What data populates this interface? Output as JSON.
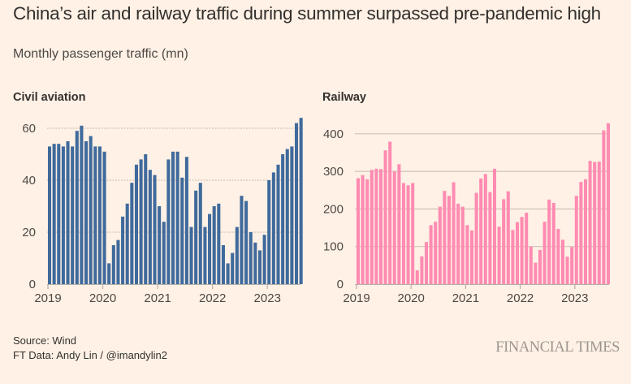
{
  "title": "China’s air and railway traffic during summer surpassed pre-pandemic high",
  "subtitle": "Monthly passenger traffic (mn)",
  "footer": {
    "source": "Source: Wind",
    "credit": "FT Data: Andy Lin / @imandylin2",
    "logo": "FINANCIAL TIMES"
  },
  "colors": {
    "background": "#fff1e5",
    "aviation_bar": "#3f6a9c",
    "railway_bar": "#ff8bb2",
    "gridline": "#cfc4ba",
    "axis": "#b8aea5"
  },
  "chart_data": [
    {
      "type": "bar",
      "title": "Civil aviation",
      "xlabel": "",
      "ylabel": "Monthly passenger traffic (mn)",
      "x_start": "2019-01",
      "x_end": "2023-08",
      "frequency": "monthly",
      "xticks": [
        "2019",
        "2020",
        "2021",
        "2022",
        "2023"
      ],
      "yticks": [
        0,
        20,
        40,
        60
      ],
      "ylim": [
        0,
        65
      ],
      "grid": true,
      "values": [
        53,
        54,
        54,
        53,
        55,
        53,
        59,
        61,
        55,
        57,
        53,
        53,
        51,
        8,
        15,
        17,
        26,
        31,
        39,
        46,
        48,
        50,
        44,
        42,
        30,
        24,
        48,
        51,
        51,
        41,
        49,
        22,
        36,
        39,
        22,
        27,
        30,
        31,
        15,
        8,
        12,
        22,
        34,
        32,
        20,
        16,
        13,
        19,
        40,
        43,
        46,
        50,
        52,
        53,
        62,
        64
      ]
    },
    {
      "type": "bar",
      "title": "Railway",
      "xlabel": "",
      "ylabel": "Monthly passenger traffic (mn)",
      "x_start": "2019-01",
      "x_end": "2023-08",
      "frequency": "monthly",
      "xticks": [
        "2019",
        "2020",
        "2021",
        "2022",
        "2023"
      ],
      "yticks": [
        0,
        100,
        200,
        300,
        400
      ],
      "ylim": [
        0,
        440
      ],
      "grid": true,
      "values": [
        282,
        290,
        279,
        304,
        307,
        306,
        356,
        379,
        300,
        319,
        269,
        263,
        269,
        37,
        74,
        112,
        157,
        166,
        206,
        248,
        235,
        271,
        214,
        206,
        157,
        143,
        243,
        281,
        293,
        245,
        307,
        153,
        226,
        247,
        144,
        165,
        179,
        190,
        100,
        57,
        91,
        166,
        225,
        216,
        147,
        118,
        73,
        99,
        235,
        272,
        279,
        328,
        325,
        326,
        409,
        428
      ]
    }
  ]
}
